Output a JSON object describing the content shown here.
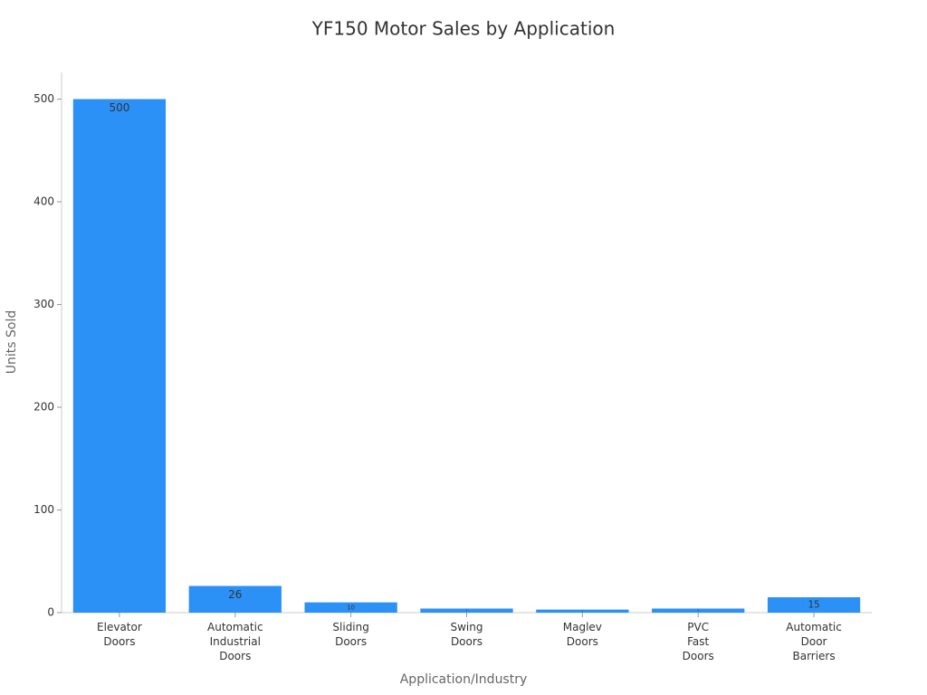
{
  "chart_data": {
    "type": "bar",
    "title": "YF150 Motor Sales by Application",
    "x_label": "Application/Industry",
    "y_label": "Units Sold",
    "categories": [
      "Elevator Doors",
      "Automatic Industrial Doors",
      "Sliding Doors",
      "Swing Doors",
      "Maglev Doors",
      "PVC Fast Doors",
      "Automatic Door Barriers"
    ],
    "values": [
      500,
      26,
      10,
      4,
      3,
      4,
      15
    ],
    "color": "#2b91f7",
    "ylim": [
      0,
      526
    ],
    "yticks": [
      0,
      100,
      200,
      300,
      400,
      500
    ],
    "grid": false
  }
}
